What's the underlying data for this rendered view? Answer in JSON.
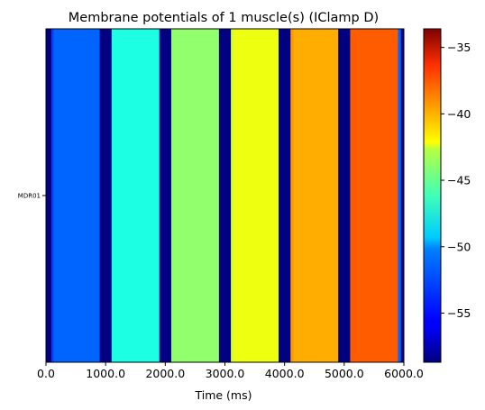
{
  "chart_data": {
    "type": "heatmap",
    "title": "Membrane potentials of 1 muscle(s) (IClamp D)",
    "xlabel": "Time (ms)",
    "ylabel": "",
    "rows": [
      "MDR01"
    ],
    "xlim": [
      0,
      6000
    ],
    "x_ticks": [
      "0.0",
      "1000.0",
      "2000.0",
      "3000.0",
      "4000.0",
      "5000.0",
      "6000.0"
    ],
    "colorbar": {
      "colormap": "jet",
      "range": [
        -58.7,
        -33.6
      ],
      "ticks": [
        "-55",
        "-50",
        "-45",
        "-40",
        "-35"
      ]
    },
    "segments": [
      {
        "x_start": 0,
        "x_end": 90,
        "value": -58.7
      },
      {
        "x_start": 90,
        "x_end": 130,
        "value": -54.0
      },
      {
        "x_start": 130,
        "x_end": 900,
        "value": -53.1
      },
      {
        "x_start": 900,
        "x_end": 1100,
        "value": -58.7
      },
      {
        "x_start": 1100,
        "x_end": 1900,
        "value": -48.6
      },
      {
        "x_start": 1900,
        "x_end": 2100,
        "value": -58.7
      },
      {
        "x_start": 2100,
        "x_end": 2900,
        "value": -45.7
      },
      {
        "x_start": 2900,
        "x_end": 3100,
        "value": -58.7
      },
      {
        "x_start": 3100,
        "x_end": 3150,
        "value": -44.0
      },
      {
        "x_start": 3150,
        "x_end": 3900,
        "value": -43.4
      },
      {
        "x_start": 3900,
        "x_end": 4100,
        "value": -58.7
      },
      {
        "x_start": 4100,
        "x_end": 4150,
        "value": -40.5
      },
      {
        "x_start": 4150,
        "x_end": 4900,
        "value": -41.0
      },
      {
        "x_start": 4900,
        "x_end": 5100,
        "value": -58.7
      },
      {
        "x_start": 5100,
        "x_end": 5900,
        "value": -39.0
      },
      {
        "x_start": 5900,
        "x_end": 5950,
        "value": -53.0
      },
      {
        "x_start": 5950,
        "x_end": 6000,
        "value": -58.7
      }
    ]
  }
}
